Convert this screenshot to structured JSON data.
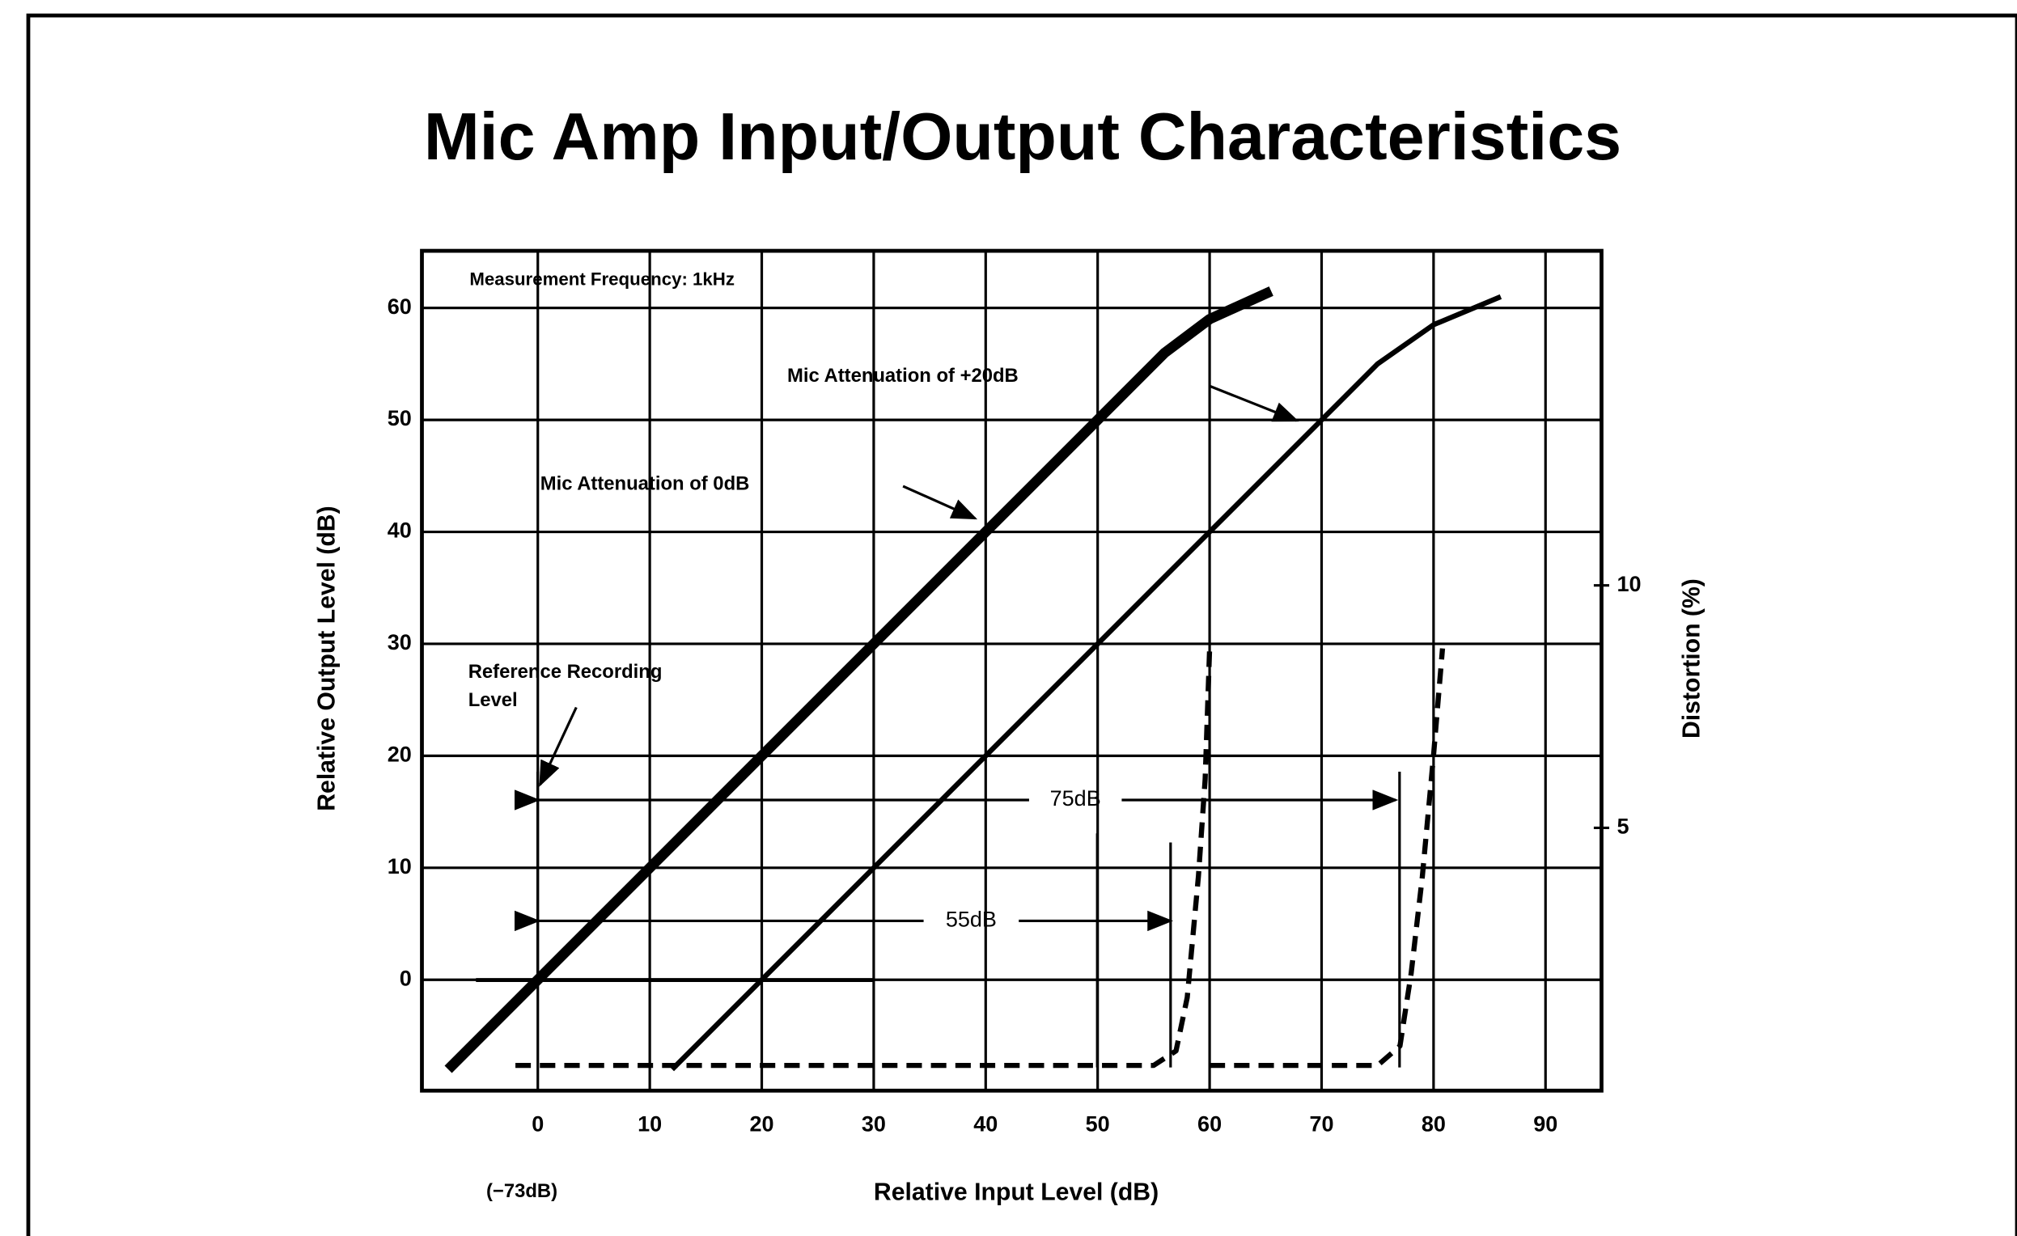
{
  "chart_data": {
    "type": "line",
    "title": "Mic Amp Input/Output Characteristics",
    "xlabel": "Relative Input Level (dB)",
    "xlabel_note": "(−73dB)",
    "ylabel": "Relative Output Level (dB)",
    "y2label": "Distortion (%)",
    "xlim": [
      -10.35,
      95
    ],
    "ylim": [
      -9.9,
      65.1
    ],
    "y2lim": [
      -0.42,
      16.9
    ],
    "xticks": [
      0,
      10,
      20,
      30,
      40,
      50,
      60,
      70,
      80,
      90
    ],
    "yticks": [
      0,
      10,
      20,
      30,
      40,
      50,
      60
    ],
    "y2ticks": [
      5,
      10
    ],
    "grid": true,
    "annotations": {
      "measurement": "Measurement Frequency: 1kHz",
      "reference": [
        "Reference Recording",
        "Level"
      ],
      "span_75": "75dB",
      "span_55": "55dB"
    },
    "series": [
      {
        "name": "Mic Attenuation of 0dB",
        "color": "#000000",
        "x": [
          -8,
          0,
          10,
          20,
          30,
          40,
          50,
          56,
          60,
          65.5
        ],
        "values": [
          -8,
          0,
          10,
          20,
          30,
          40,
          50,
          56,
          59,
          61.5
        ]
      },
      {
        "name": "Mic Attenuation of +20dB",
        "color": "#000000",
        "x": [
          12,
          20,
          30,
          40,
          50,
          60,
          70,
          75,
          80,
          86
        ],
        "values": [
          -8,
          0,
          10,
          20,
          30,
          40,
          50,
          55,
          58.5,
          61
        ]
      },
      {
        "color": "#000000",
        "axis": "y2",
        "dashed": true,
        "x": [
          -2,
          55,
          57,
          58,
          59,
          59.6,
          60
        ],
        "values": [
          0.1,
          0.1,
          0.4,
          1.5,
          4,
          6,
          8.7
        ]
      },
      {
        "color": "#000000",
        "axis": "y2",
        "dashed": true,
        "x": [
          60,
          75,
          77,
          78,
          79,
          80,
          80.8
        ],
        "values": [
          0.1,
          0.1,
          0.5,
          2,
          4,
          6.5,
          8.7
        ]
      }
    ]
  }
}
